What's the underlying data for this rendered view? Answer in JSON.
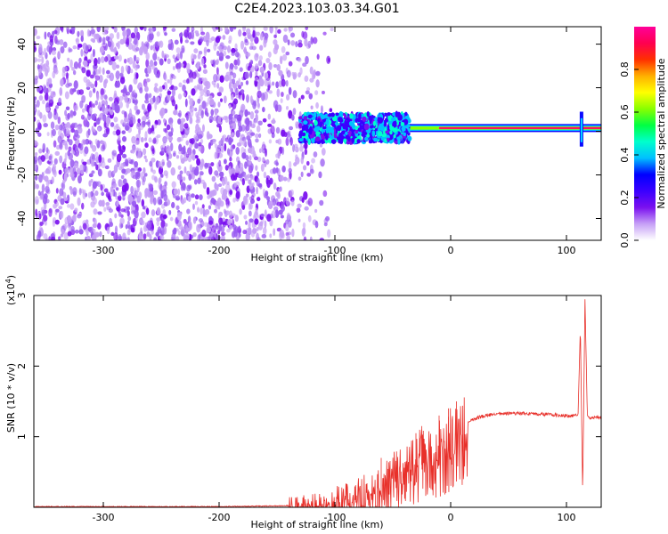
{
  "title": "C2E4.2023.103.03.34.G01",
  "chart_data": [
    {
      "type": "heatmap",
      "xlabel": "Height of straight line (km)",
      "ylabel": "Frequency (Hz)",
      "xlim": [
        -360,
        130
      ],
      "ylim": [
        -50,
        48
      ],
      "xticks": [
        -300,
        -200,
        -100,
        0,
        100
      ],
      "yticks": [
        -40,
        -20,
        0,
        20,
        40
      ],
      "colorbar": {
        "label": "Normalized spectral amplitude",
        "range": [
          0.0,
          1.0
        ],
        "ticks": [
          "0.0",
          "0.2",
          "0.4",
          "0.6",
          "0.8"
        ],
        "colors": [
          "#ffffff",
          "#c6a0f6",
          "#7a10ef",
          "#3a00ff",
          "#0000ff",
          "#00c0ff",
          "#00ffcc",
          "#00ff44",
          "#88ff00",
          "#ffff00",
          "#ffb000",
          "#ff3000",
          "#ff0050",
          "#ff0099"
        ]
      },
      "features": [
        {
          "name": "broadband noise",
          "x_range": [
            -360,
            -100
          ],
          "freq_range": [
            -50,
            48
          ],
          "amplitude": 0.1
        },
        {
          "name": "transition band",
          "x_range": [
            -130,
            -35
          ],
          "freq_range": [
            -5,
            8
          ],
          "amplitude": 0.35
        },
        {
          "name": "tone",
          "x_range": [
            -35,
            130
          ],
          "freq": 1.5,
          "amplitude": 0.85
        }
      ]
    },
    {
      "type": "line",
      "xlabel": "Height of straight line (km)",
      "ylabel": "SNR (10 * v/v)",
      "scale_label": "(x10",
      "scale_exp": "4",
      "scale_close": ")",
      "xlim": [
        -360,
        130
      ],
      "ylim": [
        0,
        3
      ],
      "xticks": [
        -300,
        -200,
        -100,
        0,
        100
      ],
      "yticks": [
        1,
        2,
        3
      ],
      "series": [
        {
          "color": "#e8302a",
          "x": [
            -360,
            -300,
            -250,
            -200,
            -150,
            -120,
            -110,
            -100,
            -90,
            -80,
            -70,
            -60,
            -50,
            -40,
            -30,
            -20,
            -10,
            0,
            10,
            20,
            30,
            40,
            50,
            60,
            70,
            80,
            90,
            100,
            105,
            110,
            112,
            114,
            116,
            118,
            120,
            130
          ],
          "y": [
            0.01,
            0.01,
            0.01,
            0.01,
            0.02,
            0.03,
            0.05,
            0.1,
            0.15,
            0.2,
            0.25,
            0.35,
            0.5,
            0.65,
            0.75,
            0.85,
            0.9,
            1.05,
            1.15,
            1.25,
            1.3,
            1.32,
            1.33,
            1.33,
            1.32,
            1.32,
            1.31,
            1.3,
            1.3,
            1.3,
            2.55,
            0.2,
            2.95,
            1.3,
            1.27,
            1.28
          ],
          "spikes": [
            [
              -60,
              0.7
            ],
            [
              -30,
              1.05
            ],
            [
              -25,
              1.15
            ],
            [
              -10,
              1.3
            ],
            [
              -2,
              1.4
            ],
            [
              5,
              1.5
            ]
          ]
        }
      ]
    }
  ]
}
